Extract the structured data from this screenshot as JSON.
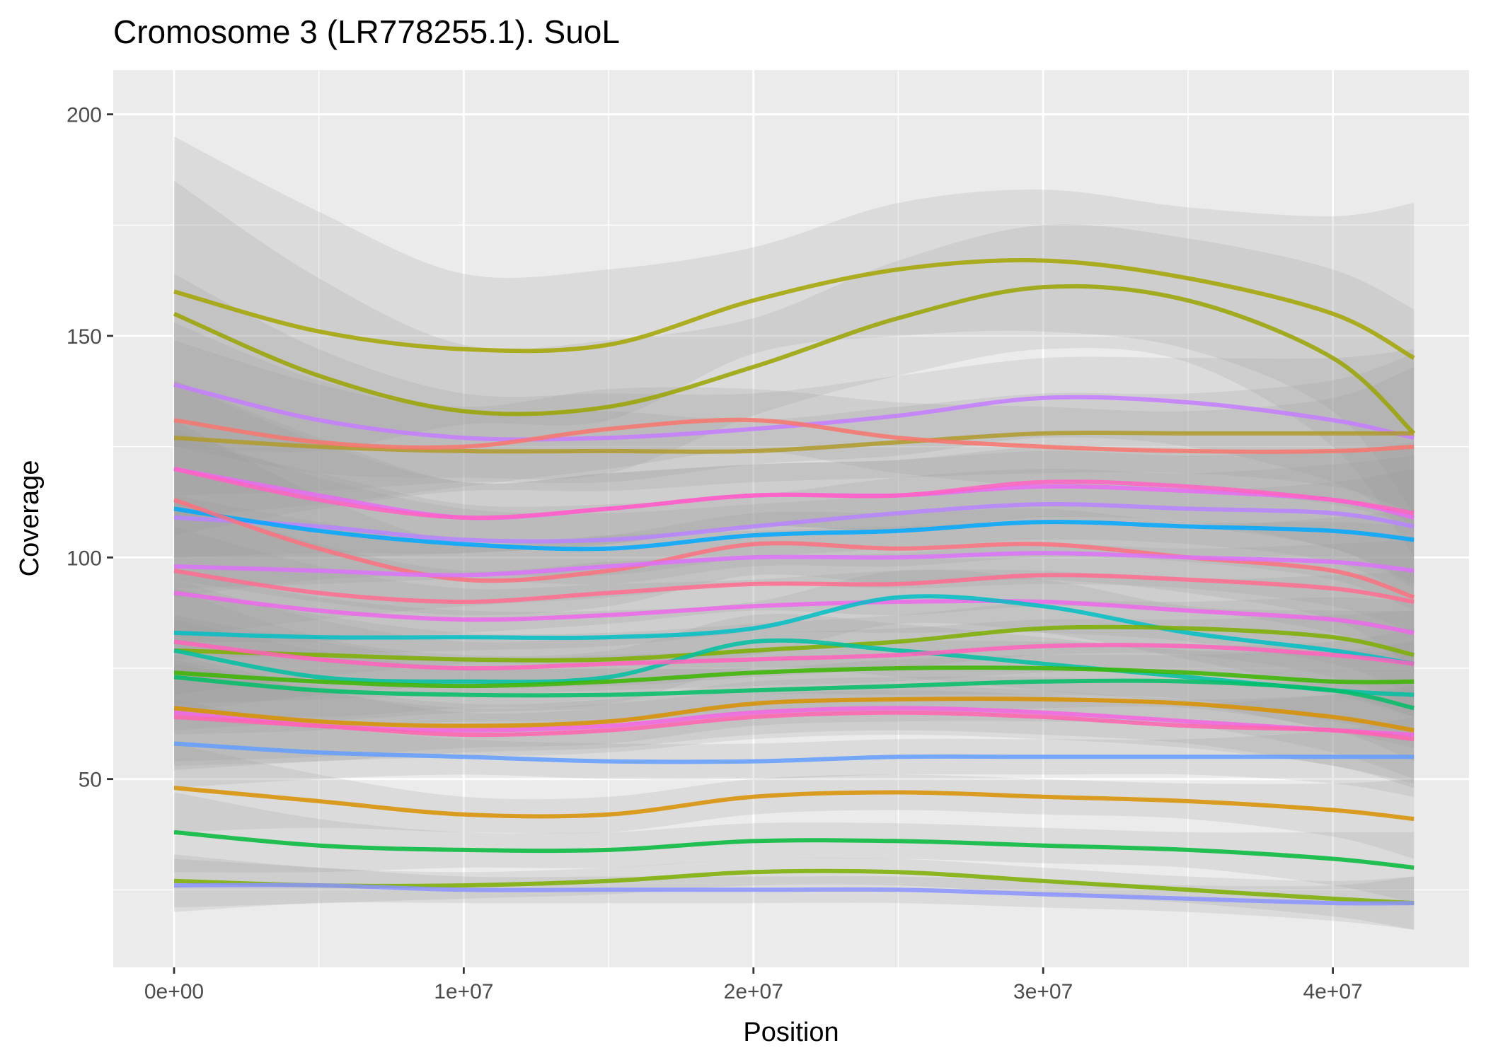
{
  "chart_data": {
    "type": "line",
    "title": "Cromosome 3 (LR778255.1). SuoL",
    "xlabel": "Position",
    "ylabel": "Coverage",
    "xlim": [
      -2100000,
      44700000
    ],
    "ylim": [
      7.5,
      210
    ],
    "x_ticks": [
      0,
      10000000,
      20000000,
      30000000,
      40000000
    ],
    "x_tick_labels": [
      "0e+00",
      "1e+07",
      "2e+07",
      "3e+07",
      "4e+07"
    ],
    "y_ticks": [
      50,
      100,
      150,
      200
    ],
    "y_tick_labels": [
      "50",
      "100",
      "150",
      "200"
    ],
    "grid": true,
    "legend": "none",
    "background": "#ebebeb",
    "band_color": "#999999",
    "x": [
      0,
      5000000,
      10000000,
      15000000,
      20000000,
      25000000,
      30000000,
      35000000,
      40000000,
      42800000
    ],
    "series": [
      {
        "color": "#a3a500",
        "values": [
          160,
          151,
          147,
          148,
          158,
          165,
          167,
          163,
          155,
          145
        ],
        "band": [
          35,
          27,
          17,
          17,
          12,
          15,
          16,
          16,
          22,
          35
        ]
      },
      {
        "color": "#9aa300",
        "values": [
          155,
          141,
          133,
          134,
          143,
          154,
          161,
          158,
          145,
          128
        ],
        "band": [
          30,
          22,
          15,
          15,
          11,
          13,
          14,
          14,
          20,
          28
        ]
      },
      {
        "color": "#c77cff",
        "values": [
          139,
          131,
          127,
          127,
          129,
          132,
          136,
          135,
          131,
          127
        ],
        "band": [
          25,
          16,
          10,
          10,
          8,
          9,
          9,
          10,
          14,
          20
        ]
      },
      {
        "color": "#b09a2a",
        "values": [
          127,
          125,
          124,
          124,
          124,
          126,
          128,
          128,
          128,
          128
        ],
        "band": [
          22,
          14,
          9,
          9,
          7,
          8,
          9,
          9,
          12,
          18
        ]
      },
      {
        "color": "#f8766d",
        "values": [
          131,
          126,
          125,
          129,
          131,
          127,
          125,
          124,
          124,
          125
        ],
        "band": [
          22,
          14,
          9,
          9,
          7,
          8,
          9,
          9,
          12,
          18
        ]
      },
      {
        "color": "#e76bf3",
        "values": [
          120,
          114,
          109,
          111,
          114,
          114,
          116,
          115,
          113,
          109
        ],
        "band": [
          20,
          13,
          8,
          8,
          7,
          8,
          8,
          8,
          11,
          16
        ]
      },
      {
        "color": "#ff61c3",
        "values": [
          120,
          113,
          109,
          111,
          114,
          114,
          117,
          116,
          113,
          110
        ],
        "band": [
          20,
          13,
          8,
          8,
          7,
          8,
          8,
          8,
          11,
          16
        ]
      },
      {
        "color": "#b983ff",
        "values": [
          109,
          107,
          104,
          104,
          107,
          110,
          112,
          111,
          110,
          107
        ],
        "band": [
          18,
          12,
          8,
          8,
          7,
          8,
          8,
          8,
          11,
          16
        ]
      },
      {
        "color": "#00a9ff",
        "values": [
          111,
          106,
          103,
          102,
          105,
          106,
          108,
          107,
          106,
          104
        ],
        "band": [
          18,
          12,
          8,
          8,
          7,
          8,
          8,
          8,
          11,
          16
        ]
      },
      {
        "color": "#fc717f",
        "values": [
          113,
          102,
          95,
          97,
          103,
          102,
          103,
          100,
          97,
          91
        ],
        "band": [
          18,
          12,
          8,
          8,
          7,
          8,
          8,
          8,
          11,
          16
        ]
      },
      {
        "color": "#dd71fa",
        "values": [
          98,
          97,
          96,
          98,
          100,
          100,
          101,
          100,
          99,
          97
        ],
        "band": [
          16,
          11,
          7,
          7,
          6,
          7,
          7,
          7,
          10,
          14
        ]
      },
      {
        "color": "#ff6c91",
        "values": [
          97,
          92,
          90,
          92,
          94,
          94,
          96,
          95,
          93,
          90
        ],
        "band": [
          16,
          11,
          7,
          7,
          6,
          7,
          7,
          7,
          10,
          14
        ]
      },
      {
        "color": "#ef67eb",
        "values": [
          92,
          88,
          86,
          87,
          89,
          90,
          90,
          88,
          86,
          83
        ],
        "band": [
          15,
          10,
          7,
          7,
          6,
          7,
          7,
          7,
          10,
          14
        ]
      },
      {
        "color": "#00bfc4",
        "values": [
          83,
          82,
          82,
          82,
          84,
          91,
          89,
          83,
          79,
          76
        ],
        "band": [
          14,
          9,
          6,
          6,
          6,
          6,
          6,
          6,
          9,
          12
        ]
      },
      {
        "color": "#7cae00",
        "values": [
          79,
          78,
          77,
          77,
          79,
          81,
          84,
          84,
          82,
          78
        ],
        "band": [
          14,
          9,
          6,
          6,
          6,
          6,
          6,
          6,
          9,
          12
        ]
      },
      {
        "color": "#00c1a3",
        "values": [
          79,
          73,
          72,
          73,
          81,
          79,
          76,
          73,
          70,
          69
        ],
        "band": [
          14,
          9,
          6,
          6,
          6,
          6,
          6,
          6,
          9,
          12
        ]
      },
      {
        "color": "#ff62bc",
        "values": [
          81,
          77,
          75,
          76,
          77,
          78,
          80,
          80,
          78,
          76
        ],
        "band": [
          14,
          9,
          6,
          6,
          6,
          6,
          6,
          6,
          9,
          12
        ]
      },
      {
        "color": "#39b600",
        "values": [
          74,
          72,
          71,
          72,
          74,
          75,
          75,
          74,
          72,
          72
        ],
        "band": [
          13,
          9,
          6,
          6,
          5,
          6,
          6,
          6,
          9,
          12
        ]
      },
      {
        "color": "#00be67",
        "values": [
          73,
          70,
          69,
          69,
          70,
          71,
          72,
          72,
          70,
          66
        ],
        "band": [
          13,
          9,
          6,
          6,
          5,
          6,
          6,
          6,
          9,
          12
        ]
      },
      {
        "color": "#d89000",
        "values": [
          66,
          63,
          62,
          63,
          67,
          68,
          68,
          67,
          64,
          61
        ],
        "band": [
          12,
          8,
          5,
          5,
          5,
          5,
          5,
          5,
          8,
          11
        ]
      },
      {
        "color": "#f564e3",
        "values": [
          65,
          62,
          61,
          62,
          65,
          66,
          65,
          63,
          61,
          60
        ],
        "band": [
          12,
          8,
          5,
          5,
          5,
          5,
          5,
          5,
          8,
          11
        ]
      },
      {
        "color": "#ff64b0",
        "values": [
          64,
          62,
          60,
          61,
          64,
          65,
          64,
          62,
          61,
          59
        ],
        "band": [
          12,
          8,
          5,
          5,
          5,
          5,
          5,
          5,
          8,
          11
        ]
      },
      {
        "color": "#619cff",
        "values": [
          58,
          56,
          55,
          54,
          54,
          55,
          55,
          55,
          55,
          55
        ],
        "band": [
          10,
          6,
          4,
          4,
          4,
          4,
          4,
          4,
          6,
          9
        ]
      },
      {
        "color": "#d89000",
        "values": [
          48,
          45,
          42,
          42,
          46,
          47,
          46,
          45,
          43,
          41
        ],
        "band": [
          10,
          6,
          4,
          4,
          4,
          4,
          4,
          4,
          6,
          9
        ]
      },
      {
        "color": "#00ba38",
        "values": [
          38,
          35,
          34,
          34,
          36,
          36,
          35,
          34,
          32,
          30
        ],
        "band": [
          9,
          6,
          4,
          4,
          4,
          4,
          4,
          4,
          6,
          8
        ]
      },
      {
        "color": "#7cae00",
        "values": [
          27,
          26,
          26,
          27,
          29,
          29,
          27,
          25,
          23,
          22
        ],
        "band": [
          6,
          4,
          3,
          3,
          3,
          3,
          3,
          3,
          4,
          6
        ]
      },
      {
        "color": "#8b93ff",
        "values": [
          26,
          26,
          25,
          25,
          25,
          25,
          24,
          23,
          22,
          22
        ],
        "band": [
          6,
          4,
          3,
          3,
          3,
          3,
          3,
          3,
          4,
          6
        ]
      }
    ]
  }
}
